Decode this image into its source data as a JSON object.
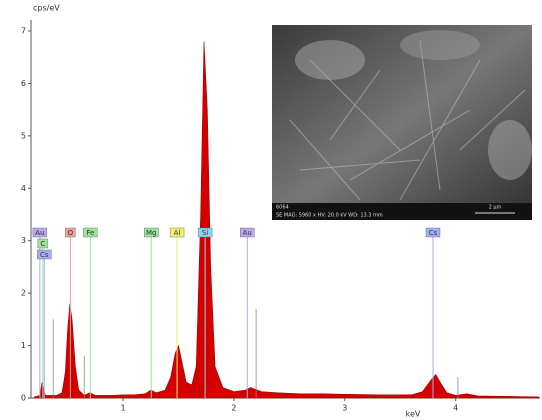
{
  "chart_data": {
    "type": "area",
    "y_label": "cps/eV",
    "x_label": "keV",
    "xlim": [
      0.17,
      4.76
    ],
    "ylim": [
      0,
      7
    ],
    "xticks": [
      1,
      2,
      3,
      4
    ],
    "yticks": [
      0,
      1,
      2,
      3,
      4,
      5,
      6,
      7
    ],
    "color": "#d40000",
    "x": [
      0.2,
      0.25,
      0.27,
      0.3,
      0.4,
      0.45,
      0.48,
      0.5,
      0.52,
      0.54,
      0.57,
      0.6,
      0.65,
      0.7,
      0.75,
      0.9,
      1.0,
      1.1,
      1.2,
      1.25,
      1.3,
      1.38,
      1.43,
      1.47,
      1.5,
      1.53,
      1.57,
      1.62,
      1.66,
      1.7,
      1.73,
      1.76,
      1.79,
      1.83,
      1.9,
      2.0,
      2.1,
      2.15,
      2.25,
      2.4,
      2.6,
      2.8,
      3.0,
      3.3,
      3.6,
      3.7,
      3.78,
      3.82,
      3.86,
      3.92,
      4.0,
      4.1,
      4.2,
      4.5,
      4.75
    ],
    "values": [
      0.02,
      0.05,
      0.3,
      0.05,
      0.05,
      0.1,
      0.5,
      1.3,
      1.8,
      1.5,
      0.6,
      0.15,
      0.05,
      0.1,
      0.05,
      0.05,
      0.06,
      0.06,
      0.08,
      0.15,
      0.1,
      0.15,
      0.4,
      0.85,
      1.0,
      0.7,
      0.3,
      0.25,
      0.6,
      3.5,
      6.8,
      5.5,
      2.5,
      0.6,
      0.2,
      0.12,
      0.15,
      0.2,
      0.12,
      0.1,
      0.08,
      0.08,
      0.07,
      0.06,
      0.06,
      0.12,
      0.35,
      0.45,
      0.3,
      0.1,
      0.05,
      0.08,
      0.04,
      0.03,
      0.02
    ],
    "element_markers": [
      {
        "label": "Au",
        "energy": 0.25,
        "color": "#b9a6ee"
      },
      {
        "label": "C",
        "energy": 0.277,
        "color": "#9be39b"
      },
      {
        "label": "Cs",
        "energy": 0.29,
        "color": "#a3aef2"
      },
      {
        "label": "O",
        "energy": 0.525,
        "color": "#f29c9c"
      },
      {
        "label": "Fe",
        "energy": 0.705,
        "color": "#9be39b"
      },
      {
        "label": "Mg",
        "energy": 1.254,
        "color": "#9be39b"
      },
      {
        "label": "Al",
        "energy": 1.487,
        "color": "#eeee70"
      },
      {
        "label": "Si",
        "energy": 1.74,
        "color": "#86d6f0"
      },
      {
        "label": "Au",
        "energy": 2.12,
        "color": "#b9a6ee"
      },
      {
        "label": "Cs",
        "energy": 3.795,
        "color": "#a3aef2"
      }
    ],
    "marker_lines": [
      {
        "energy": 0.37,
        "height": 1.5
      },
      {
        "energy": 0.65,
        "height": 0.8
      },
      {
        "energy": 2.2,
        "height": 1.7
      },
      {
        "energy": 4.02,
        "height": 0.4
      }
    ],
    "inset": {
      "id": "6064",
      "caption": "SE MAG: 5960 x  HV: 20.0 kV  WD: 13.3 mm",
      "scale": "2 μm"
    }
  }
}
